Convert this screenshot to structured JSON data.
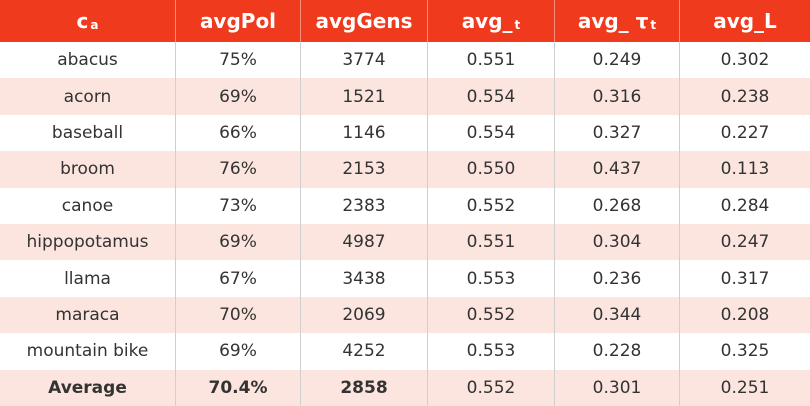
{
  "table": {
    "header": [
      {
        "text": "c",
        "sub": "a"
      },
      {
        "text": "avgPol"
      },
      {
        "text": "avgGens"
      },
      {
        "text": "avg_",
        "sub": "t"
      },
      {
        "text": "avg_ τ",
        "sub": "t"
      },
      {
        "text": "avg_L"
      }
    ],
    "rows": [
      [
        "abacus",
        "75%",
        "3774",
        "0.551",
        "0.249",
        "0.302"
      ],
      [
        "acorn",
        "69%",
        "1521",
        "0.554",
        "0.316",
        "0.238"
      ],
      [
        "baseball",
        "66%",
        "1146",
        "0.554",
        "0.327",
        "0.227"
      ],
      [
        "broom",
        "76%",
        "2153",
        "0.550",
        "0.437",
        "0.113"
      ],
      [
        "canoe",
        "73%",
        "2383",
        "0.552",
        "0.268",
        "0.284"
      ],
      [
        "hippopotamus",
        "69%",
        "4987",
        "0.551",
        "0.304",
        "0.247"
      ],
      [
        "llama",
        "67%",
        "3438",
        "0.553",
        "0.236",
        "0.317"
      ],
      [
        "maraca",
        "70%",
        "2069",
        "0.552",
        "0.344",
        "0.208"
      ],
      [
        "mountain bike",
        "69%",
        "4252",
        "0.553",
        "0.228",
        "0.325"
      ],
      [
        "Average",
        "70.4%",
        "2858",
        "0.552",
        "0.301",
        "0.251"
      ]
    ]
  }
}
